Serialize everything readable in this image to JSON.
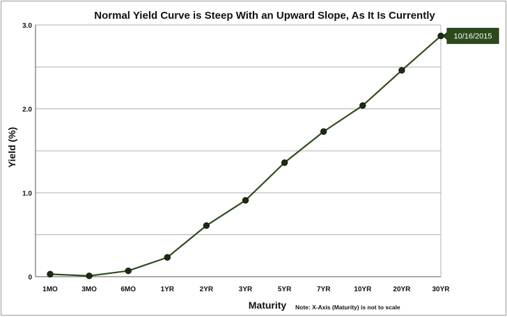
{
  "chart_data": {
    "type": "line",
    "title": "Normal Yield Curve is Steep With an Upward Slope, As It Is Currently",
    "xlabel": "Maturity",
    "ylabel": "Yield (%)",
    "note": "Note: X-Axis (Maturity) is not to scale",
    "categories": [
      "1MO",
      "3MO",
      "6MO",
      "1YR",
      "2YR",
      "3YR",
      "5YR",
      "7YR",
      "10YR",
      "20YR",
      "30YR"
    ],
    "series": [
      {
        "name": "10/16/2015",
        "values": [
          0.03,
          0.01,
          0.07,
          0.23,
          0.61,
          0.91,
          1.36,
          1.73,
          2.04,
          2.46,
          2.87
        ]
      }
    ],
    "y_ticks": [
      "0",
      "1.0",
      "2.0",
      "3.0"
    ],
    "ylim": [
      0,
      3.0
    ],
    "grid": true,
    "series_label": "10/16/2015",
    "colors": {
      "line": "#2f4a1e",
      "marker": "#1f2a14",
      "tag_bg": "#2b4a1a",
      "grid": "#b0b0b0"
    }
  }
}
